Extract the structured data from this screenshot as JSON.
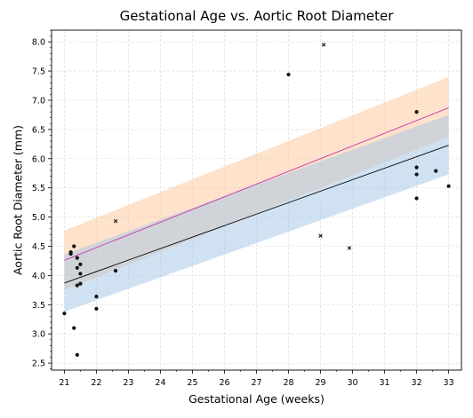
{
  "chart_data": {
    "type": "scatter",
    "title": "Gestational Age vs. Aortic Root Diameter",
    "xlabel": "Gestational Age (weeks)",
    "ylabel": "Aortic Root Diameter (mm)",
    "xlim": [
      20.6,
      33.4
    ],
    "ylim": [
      2.38,
      8.2
    ],
    "grid": true,
    "x_ticks": [
      21,
      22,
      23,
      24,
      25,
      26,
      27,
      28,
      29,
      30,
      31,
      32,
      33
    ],
    "y_ticks": [
      2.5,
      3.0,
      3.5,
      4.0,
      4.5,
      5.0,
      5.5,
      6.0,
      6.5,
      7.0,
      7.5,
      8.0
    ],
    "x_minor_step": 0.5,
    "y_minor_step": 0.1,
    "colors": {
      "orange_band": "#fdcba0",
      "blue_band": "#a9c9e6",
      "magenta_line": "#c837ab",
      "black_line": "#000000",
      "points": "#111111",
      "grid": "#e3e3e3"
    },
    "series": [
      {
        "marker": "dot",
        "points": [
          [
            21.0,
            3.35
          ],
          [
            21.2,
            4.4
          ],
          [
            21.2,
            4.37
          ],
          [
            21.3,
            4.5
          ],
          [
            21.3,
            3.1
          ],
          [
            21.4,
            4.3
          ],
          [
            21.4,
            4.13
          ],
          [
            21.4,
            3.83
          ],
          [
            21.4,
            2.64
          ],
          [
            21.5,
            4.19
          ],
          [
            21.5,
            4.03
          ],
          [
            21.5,
            3.86
          ],
          [
            22.0,
            3.64
          ],
          [
            22.0,
            3.43
          ],
          [
            22.6,
            4.08
          ],
          [
            28.0,
            7.44
          ],
          [
            32.0,
            6.8
          ],
          [
            32.0,
            5.85
          ],
          [
            32.0,
            5.73
          ],
          [
            32.0,
            5.32
          ],
          [
            32.6,
            5.79
          ],
          [
            33.0,
            5.53
          ]
        ]
      },
      {
        "marker": "x",
        "points": [
          [
            22.6,
            4.93
          ],
          [
            29.0,
            4.68
          ],
          [
            29.1,
            7.95
          ],
          [
            29.9,
            4.47
          ]
        ]
      }
    ],
    "fits": [
      {
        "color_key": "magenta_line",
        "band_key": "orange_band",
        "x": [
          21,
          33
        ],
        "y": [
          4.26,
          6.87
        ],
        "lower": [
          3.75,
          6.37
        ],
        "upper": [
          4.77,
          7.4
        ]
      },
      {
        "color_key": "black_line",
        "band_key": "blue_band",
        "x": [
          21,
          33
        ],
        "y": [
          3.87,
          6.23
        ],
        "lower": [
          3.38,
          5.73
        ],
        "upper": [
          4.36,
          6.75
        ]
      }
    ]
  }
}
